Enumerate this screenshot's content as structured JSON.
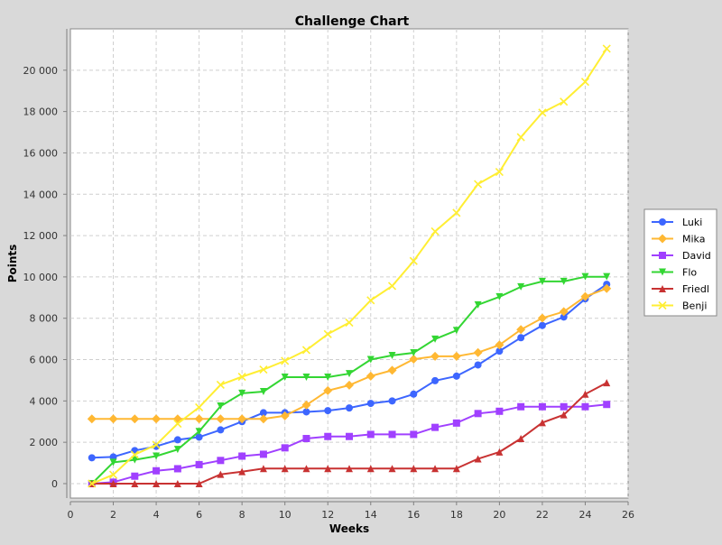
{
  "chart_data": {
    "type": "line",
    "title": "Challenge Chart",
    "xlabel": "Weeks",
    "ylabel": "Points",
    "xlim": [
      0,
      26
    ],
    "ylim": [
      -700,
      22000
    ],
    "xticks": [
      0,
      2,
      4,
      6,
      8,
      10,
      12,
      14,
      16,
      18,
      20,
      22,
      24,
      26
    ],
    "xtick_labels": [
      "0",
      "2",
      "4",
      "6",
      "8",
      "10",
      "12",
      "14",
      "16",
      "18",
      "20",
      "22",
      "24",
      "26"
    ],
    "yticks": [
      0,
      2000,
      4000,
      6000,
      8000,
      10000,
      12000,
      14000,
      16000,
      18000,
      20000
    ],
    "ytick_labels": [
      "0",
      "2 000",
      "4 000",
      "6 000",
      "8 000",
      "10 000",
      "12 000",
      "14 000",
      "16 000",
      "18 000",
      "20 000"
    ],
    "grid": true,
    "legend_position": "right",
    "x": [
      1,
      2,
      3,
      4,
      5,
      6,
      7,
      8,
      9,
      10,
      11,
      12,
      13,
      14,
      15,
      16,
      17,
      18,
      19,
      20,
      21,
      22,
      23,
      24,
      25
    ],
    "series": [
      {
        "name": "Luki",
        "color": "#3d66ff",
        "marker": "circle",
        "values": [
          1250,
          1290,
          1600,
          1800,
          2120,
          2250,
          2600,
          3000,
          3430,
          3430,
          3470,
          3530,
          3660,
          3880,
          4000,
          4330,
          4980,
          5200,
          5740,
          6410,
          7060,
          7650,
          8060,
          8940,
          9640
        ]
      },
      {
        "name": "Mika",
        "color": "#ffb833",
        "marker": "diamond",
        "values": [
          3130,
          3130,
          3130,
          3130,
          3130,
          3130,
          3130,
          3130,
          3130,
          3280,
          3800,
          4500,
          4760,
          5200,
          5480,
          6020,
          6160,
          6160,
          6340,
          6710,
          7450,
          8010,
          8320,
          9050,
          9440
        ]
      },
      {
        "name": "David",
        "color": "#a040ff",
        "marker": "square",
        "values": [
          0,
          70,
          360,
          620,
          720,
          920,
          1120,
          1330,
          1420,
          1730,
          2180,
          2280,
          2280,
          2380,
          2380,
          2380,
          2720,
          2930,
          3390,
          3500,
          3720,
          3720,
          3720,
          3720,
          3830
        ]
      },
      {
        "name": "Flo",
        "color": "#33d633",
        "marker": "triangle-down",
        "values": [
          0,
          1030,
          1150,
          1330,
          1650,
          2520,
          3750,
          4370,
          4450,
          5150,
          5150,
          5150,
          5320,
          6000,
          6200,
          6330,
          6990,
          7410,
          8650,
          9040,
          9520,
          9780,
          9780,
          10010,
          10010
        ]
      },
      {
        "name": "Friedl",
        "color": "#c83232",
        "marker": "triangle-up",
        "values": [
          0,
          0,
          0,
          0,
          0,
          0,
          450,
          580,
          730,
          730,
          730,
          730,
          730,
          730,
          730,
          730,
          730,
          730,
          1200,
          1530,
          2180,
          2950,
          3330,
          4330,
          4880
        ]
      },
      {
        "name": "Benji",
        "color": "#ffee33",
        "marker": "x",
        "values": [
          0,
          430,
          1400,
          1880,
          2900,
          3690,
          4780,
          5170,
          5520,
          5940,
          6460,
          7230,
          7790,
          8870,
          9560,
          10770,
          12200,
          13100,
          14490,
          15080,
          16760,
          17950,
          18480,
          19440,
          21040
        ]
      }
    ]
  }
}
